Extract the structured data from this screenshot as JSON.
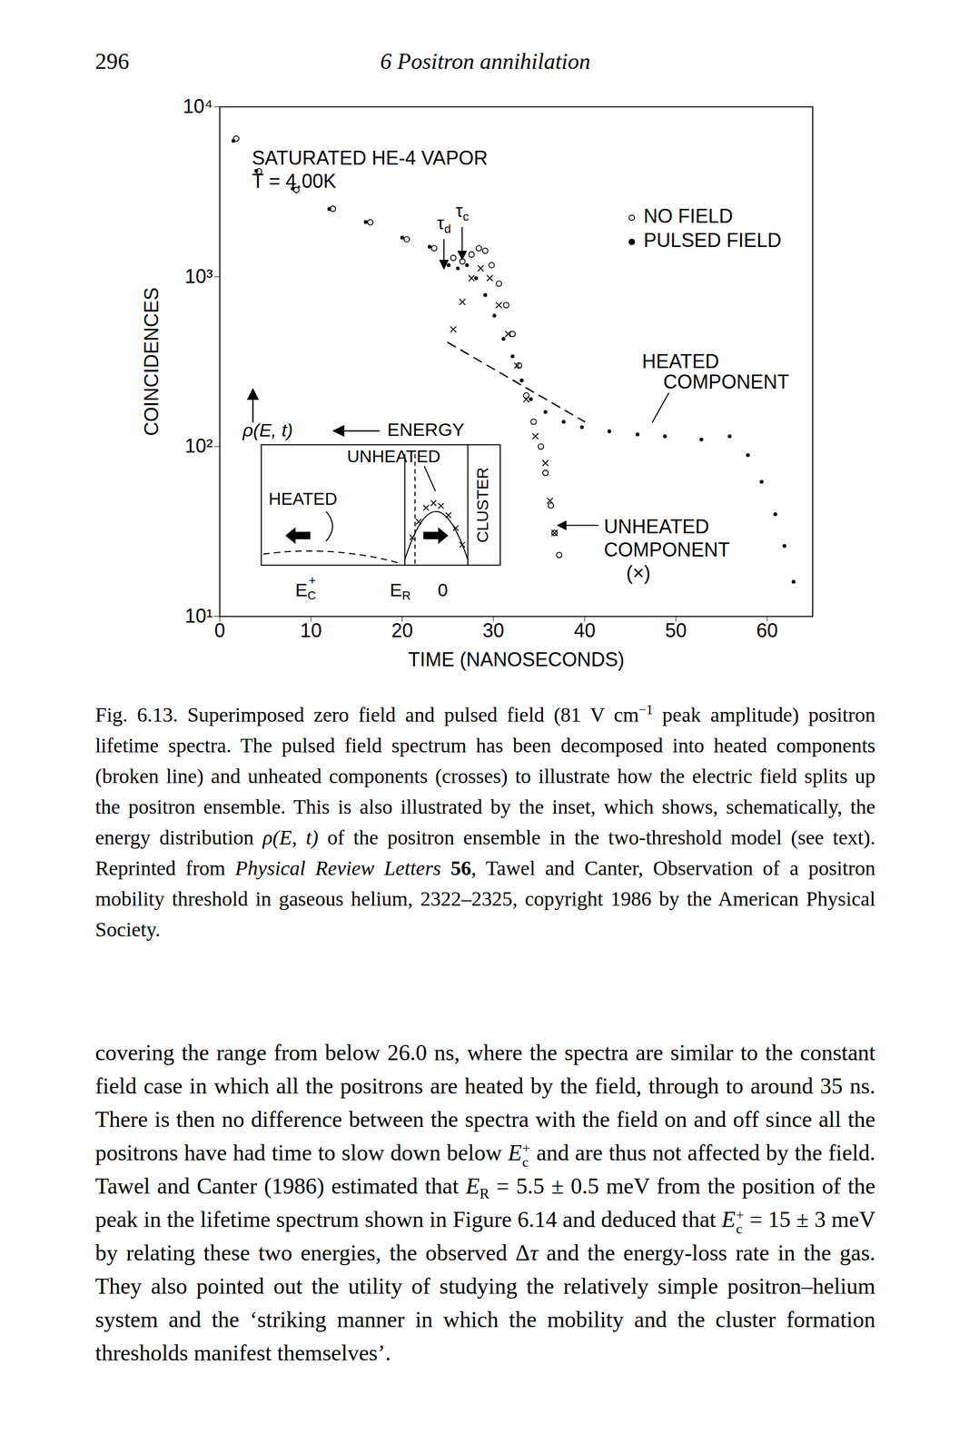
{
  "header": {
    "page_number": "296",
    "running_title": "6 Positron annihilation"
  },
  "chart_data": {
    "type": "scatter",
    "xlabel": "TIME (NANOSECONDS)",
    "ylabel": "COINCIDENCES",
    "log": "y",
    "xlim": [
      0,
      65
    ],
    "xticks": [
      0,
      10,
      20,
      30,
      40,
      50,
      60
    ],
    "ylim": [
      10,
      10000
    ],
    "yticks": [
      {
        "value": 10,
        "label": "10¹"
      },
      {
        "value": 100,
        "label": "10²"
      },
      {
        "value": 1000,
        "label": "10³"
      },
      {
        "value": 10000,
        "label": "10⁴"
      }
    ],
    "grid": false,
    "legend": "upper right",
    "annotations": [
      "SATURATED HE-4 VAPOR",
      "T = 4.00K"
    ],
    "time_markers": [
      {
        "symbol": "τ",
        "sub": "d",
        "x": 24.6
      },
      {
        "symbol": "τ",
        "sub": "c",
        "x": 26.6
      }
    ],
    "series": [
      {
        "name": "NO FIELD",
        "type": "scatter",
        "marker": "open_circle",
        "color": "#000000",
        "x": [
          1.8,
          4.3,
          8.4,
          12.4,
          16.5,
          20.5,
          23.5,
          25.6,
          26.6,
          27.6,
          28.4,
          29.1,
          29.8,
          30.6,
          31.4,
          32.1,
          32.8,
          33.6,
          34.4,
          35.2,
          35.7,
          36.3,
          36.7,
          37.2
        ],
        "values": [
          6500,
          4170,
          3240,
          2510,
          2090,
          1660,
          1470,
          1290,
          1230,
          1350,
          1470,
          1420,
          1170,
          910,
          680,
          460,
          300,
          200,
          140,
          100,
          70,
          45,
          31,
          23
        ]
      },
      {
        "name": "PULSED FIELD",
        "type": "scatter",
        "marker": "dot",
        "color": "#000000",
        "x": [
          1.5,
          4,
          8,
          12,
          16,
          20,
          23,
          25.1,
          26.1,
          27.1,
          28.1,
          29.1,
          30.1,
          31.1,
          32.1,
          33.1,
          34.1,
          35.7,
          37.7,
          39.7,
          42.7,
          45.8,
          48.8,
          52.8,
          55.9,
          57.9,
          59.4,
          60.9,
          61.9,
          62.9
        ],
        "values": [
          6300,
          4200,
          3300,
          2500,
          2100,
          1700,
          1500,
          1170,
          1120,
          1170,
          980,
          780,
          590,
          430,
          340,
          245,
          190,
          160,
          140,
          130,
          123,
          118,
          115,
          110,
          115,
          89,
          62,
          40,
          26,
          16
        ]
      },
      {
        "name": "UNHEATED COMPONENT (×)",
        "type": "scatter",
        "marker": "x",
        "color": "#000000",
        "x": [
          25.6,
          26.6,
          27.6,
          28.6,
          29.6,
          30.6,
          31.6,
          32.6,
          33.6,
          34.6,
          35.7,
          36.2,
          36.7
        ],
        "values": [
          490,
          710,
          980,
          1120,
          980,
          680,
          460,
          300,
          190,
          115,
          80,
          48,
          31
        ]
      },
      {
        "name": "HEATED COMPONENT",
        "type": "line",
        "line_style": "dashed",
        "color": "#000000",
        "x": [
          25,
          40
        ],
        "values": [
          410,
          140
        ]
      }
    ],
    "inset": {
      "y_label": "ρ(E, t)",
      "x_label": "ENERGY",
      "labels": [
        "UNHEATED",
        "HEATED",
        "CLUSTER"
      ],
      "energy_marks": [
        {
          "text": "E",
          "sub": "C",
          "sup": "+"
        },
        {
          "text": "E",
          "sub": "R"
        },
        {
          "text": "0"
        }
      ]
    }
  },
  "caption": [
    "Fig. 6.13. Superimposed zero field and pulsed field (81 V ",
    {
      "text": "cm",
      "sup": "−1"
    },
    " peak amplitude) positron lifetime spectra. The pulsed field spectrum has been decomposed into heated components (broken line) and unheated components (crosses) to illustrate how the electric field splits up the positron ensemble. This is also illustrated by the inset, which shows, schematically, the energy distribution ",
    {
      "text": "ρ(E, t)",
      "italic": true
    },
    " of the positron ensemble in the two-threshold model (see text). Reprinted from ",
    {
      "text": "Physical Review Letters",
      "italic": true
    },
    " ",
    {
      "text": "56",
      "bold": true
    },
    ", Tawel and Canter, Observation of a positron mobility threshold in gaseous helium, 2322–2325, copyright 1986 by the American Physical Society."
  ],
  "body": [
    "covering the range from below 26.0 ns, where the spectra are similar to the constant field case in which all the positrons are heated by the field, through to around 35 ns. There is then no difference between the spectra with the field on and off since all the positrons have had time to slow down below ",
    {
      "text": "E",
      "italic": true,
      "sub": "c",
      "sup": "+"
    },
    " and are thus not affected by the field. Tawel and Canter (1986) estimated that ",
    {
      "text": "E",
      "italic": true,
      "sub": "R"
    },
    " = 5.5 ± 0.5 meV from the position of the peak in the lifetime spectrum shown in Figure 6.14 and deduced that ",
    {
      "text": "E",
      "italic": true,
      "sub": "c",
      "sup": "+"
    },
    " = 15 ± 3 meV by relating these two energies, the observed Δ",
    {
      "text": "τ",
      "italic": true
    },
    " and the energy-loss rate in the gas. They also pointed out the utility of studying the relatively simple positron–helium system and the ‘striking manner in which the mobility and the cluster formation thresholds manifest themselves’."
  ]
}
